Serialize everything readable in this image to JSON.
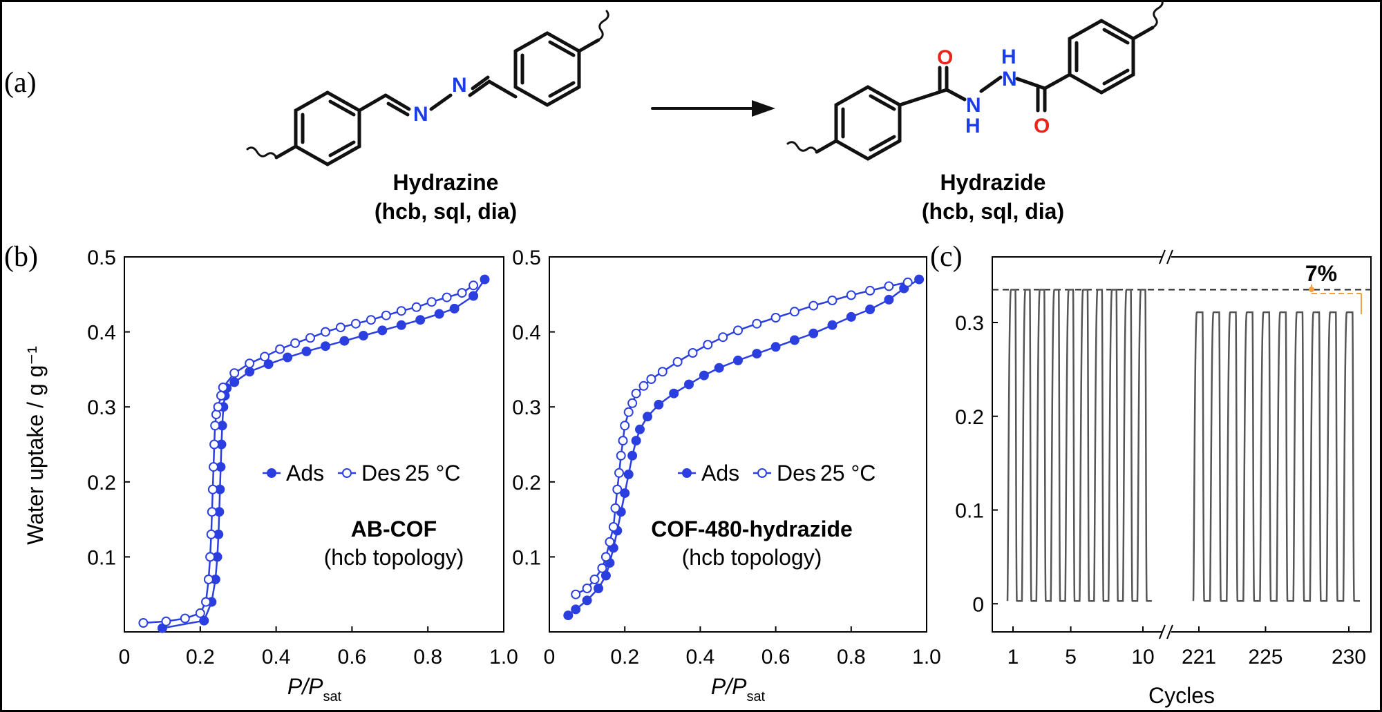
{
  "panels": {
    "a": "(a)",
    "b": "(b)",
    "c": "(c)"
  },
  "scheme": {
    "left_name": "Hydrazine",
    "left_topologies": "(hcb, sql, dia)",
    "right_name": "Hydrazide",
    "right_topologies": "(hcb, sql, dia)",
    "atoms": {
      "N": "N",
      "O": "O",
      "H": "H"
    },
    "colors": {
      "bond": "#111111",
      "nitrogen": "#1a3de6",
      "oxygen": "#e8261b"
    }
  },
  "chart_data": [
    {
      "type": "line",
      "ylabel": "Water uptake / g g⁻¹",
      "xlabel": "P/P",
      "xlabel_sub": "sat",
      "xlim": [
        0,
        1.0
      ],
      "ylim": [
        0,
        0.5
      ],
      "xticks": [
        "0",
        "0.2",
        "0.4",
        "0.6",
        "0.8",
        "1.0"
      ],
      "yticks": [
        "0.1",
        "0.2",
        "0.3",
        "0.4",
        "0.5"
      ],
      "legend": {
        "ads": "Ads",
        "des": "Des",
        "temp": "25 °C"
      },
      "annotation": [
        "AB-COF",
        "(hcb topology)"
      ],
      "color": "#2b3fe0",
      "series": [
        {
          "name": "Ads",
          "marker": "filled",
          "x": [
            0.1,
            0.21,
            0.23,
            0.24,
            0.245,
            0.248,
            0.25,
            0.252,
            0.254,
            0.256,
            0.258,
            0.261,
            0.265,
            0.27,
            0.29,
            0.33,
            0.38,
            0.43,
            0.48,
            0.53,
            0.58,
            0.63,
            0.68,
            0.73,
            0.78,
            0.83,
            0.87,
            0.92,
            0.95
          ],
          "y": [
            0.005,
            0.015,
            0.04,
            0.07,
            0.1,
            0.13,
            0.16,
            0.19,
            0.22,
            0.25,
            0.275,
            0.3,
            0.315,
            0.325,
            0.333,
            0.347,
            0.357,
            0.366,
            0.374,
            0.381,
            0.388,
            0.395,
            0.402,
            0.409,
            0.416,
            0.424,
            0.431,
            0.448,
            0.47
          ]
        },
        {
          "name": "Des",
          "marker": "open",
          "x": [
            0.05,
            0.11,
            0.16,
            0.2,
            0.215,
            0.222,
            0.226,
            0.229,
            0.231,
            0.233,
            0.235,
            0.237,
            0.239,
            0.242,
            0.247,
            0.255,
            0.26,
            0.29,
            0.33,
            0.37,
            0.41,
            0.45,
            0.49,
            0.53,
            0.57,
            0.61,
            0.65,
            0.69,
            0.73,
            0.77,
            0.81,
            0.85,
            0.89,
            0.92
          ],
          "y": [
            0.012,
            0.014,
            0.018,
            0.025,
            0.04,
            0.07,
            0.1,
            0.13,
            0.16,
            0.19,
            0.22,
            0.25,
            0.275,
            0.29,
            0.3,
            0.315,
            0.326,
            0.345,
            0.358,
            0.367,
            0.377,
            0.385,
            0.392,
            0.4,
            0.406,
            0.411,
            0.416,
            0.422,
            0.428,
            0.433,
            0.44,
            0.446,
            0.452,
            0.462
          ]
        }
      ]
    },
    {
      "type": "line",
      "xlabel": "P/P",
      "xlabel_sub": "sat",
      "xlim": [
        0,
        1.0
      ],
      "ylim": [
        0,
        0.5
      ],
      "xticks": [
        "0",
        "0.2",
        "0.4",
        "0.6",
        "0.8",
        "1.0"
      ],
      "yticks": [
        "0.1",
        "0.2",
        "0.3",
        "0.4",
        "0.5"
      ],
      "legend": {
        "ads": "Ads",
        "des": "Des",
        "temp": "25 °C"
      },
      "annotation": [
        "COF-480-hydrazide",
        "(hcb topology)"
      ],
      "color": "#2b3fe0",
      "series": [
        {
          "name": "Ads",
          "marker": "filled",
          "x": [
            0.05,
            0.07,
            0.1,
            0.13,
            0.15,
            0.16,
            0.17,
            0.18,
            0.19,
            0.2,
            0.21,
            0.22,
            0.23,
            0.24,
            0.26,
            0.29,
            0.33,
            0.37,
            0.41,
            0.45,
            0.5,
            0.55,
            0.6,
            0.65,
            0.7,
            0.75,
            0.8,
            0.85,
            0.9,
            0.94,
            0.98
          ],
          "y": [
            0.022,
            0.03,
            0.042,
            0.058,
            0.075,
            0.092,
            0.112,
            0.135,
            0.16,
            0.185,
            0.21,
            0.235,
            0.255,
            0.27,
            0.287,
            0.303,
            0.318,
            0.33,
            0.342,
            0.352,
            0.362,
            0.371,
            0.38,
            0.389,
            0.398,
            0.409,
            0.42,
            0.43,
            0.443,
            0.458,
            0.47
          ]
        },
        {
          "name": "Des",
          "marker": "open",
          "x": [
            0.07,
            0.1,
            0.12,
            0.14,
            0.15,
            0.16,
            0.17,
            0.175,
            0.18,
            0.185,
            0.19,
            0.195,
            0.2,
            0.21,
            0.22,
            0.23,
            0.25,
            0.27,
            0.3,
            0.34,
            0.38,
            0.42,
            0.46,
            0.5,
            0.55,
            0.6,
            0.65,
            0.7,
            0.75,
            0.8,
            0.85,
            0.9,
            0.95
          ],
          "y": [
            0.05,
            0.058,
            0.07,
            0.085,
            0.1,
            0.12,
            0.14,
            0.165,
            0.19,
            0.212,
            0.235,
            0.255,
            0.275,
            0.293,
            0.305,
            0.318,
            0.328,
            0.337,
            0.347,
            0.36,
            0.372,
            0.383,
            0.393,
            0.402,
            0.411,
            0.419,
            0.427,
            0.435,
            0.442,
            0.449,
            0.455,
            0.461,
            0.466
          ]
        }
      ]
    },
    {
      "type": "line",
      "xlabel": "Cycles",
      "ylim": [
        -0.03,
        0.37
      ],
      "yticks": [
        "0",
        "0.1",
        "0.2",
        "0.3"
      ],
      "xticks": [
        "1",
        "5",
        "10",
        "221",
        "225",
        "230"
      ],
      "color": "#555555",
      "segments": [
        {
          "cycles": [
            1,
            2,
            3,
            4,
            5,
            6,
            7,
            8,
            9,
            10
          ],
          "peak": 0.335,
          "trough": 0.003
        },
        {
          "cycles": [
            221,
            222,
            223,
            224,
            225,
            226,
            227,
            228,
            229,
            230
          ],
          "peak": 0.311,
          "trough": 0.003
        }
      ],
      "reference_line": 0.335,
      "annotation": "7%",
      "annotation_color": "#f0a040"
    }
  ]
}
